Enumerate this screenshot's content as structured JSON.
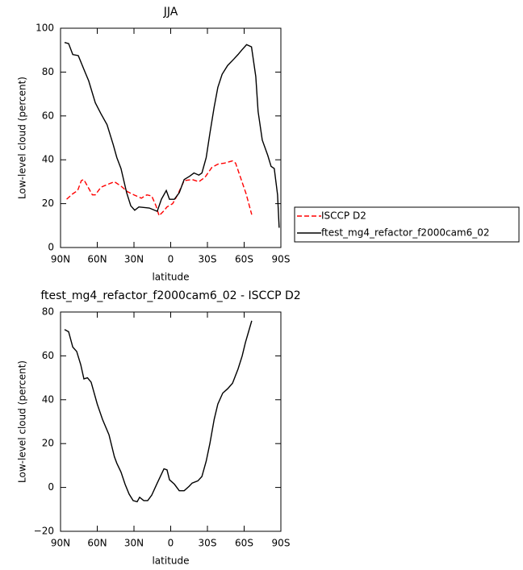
{
  "chart_data": [
    {
      "type": "line",
      "title": "JJA",
      "x_label": "latitude",
      "y_label": "Low-level cloud (percent)",
      "xlim": [
        90,
        -90
      ],
      "xticks": [
        {
          "value": 90,
          "label": "90N"
        },
        {
          "value": 60,
          "label": "60N"
        },
        {
          "value": 30,
          "label": "30N"
        },
        0,
        {
          "value": -30,
          "label": "30S"
        },
        {
          "value": -60,
          "label": "60S"
        },
        {
          "value": -90,
          "label": "90S"
        }
      ],
      "ylim": [
        0,
        100
      ],
      "yticks": [
        0,
        20,
        40,
        60,
        80,
        100
      ],
      "legend": "outside-right",
      "series": [
        {
          "name": "ISCCP D2",
          "color": "#ff0000",
          "dashed": true,
          "x": [
            85,
            80,
            76,
            73,
            71,
            68,
            64,
            61.6,
            57,
            50.5,
            46,
            40.6,
            35.4,
            30,
            24,
            19.5,
            15.5,
            12,
            9.5,
            6,
            3,
            -1.6,
            -5.6,
            -11,
            -17.5,
            -23,
            -28,
            -33.6,
            -38.5,
            -44,
            -50.5,
            -53,
            -57,
            -61.6,
            -66.2
          ],
          "values": [
            22,
            24.5,
            26,
            30.5,
            31,
            28,
            24,
            24,
            27.5,
            29,
            30,
            28,
            25.5,
            24,
            22.5,
            24,
            23.5,
            19,
            14.5,
            16.5,
            18.5,
            20,
            24,
            30.5,
            31,
            30,
            32,
            36.5,
            38,
            38.5,
            39.5,
            38.5,
            32,
            24.5,
            15
          ]
        },
        {
          "name": "ftest_mg4_refactor_f2000cam6_02",
          "color": "#000000",
          "dashed": false,
          "x": [
            86.7,
            83.4,
            80,
            75.5,
            70,
            67,
            61.6,
            57,
            52,
            47,
            44,
            40.6,
            36,
            32.6,
            29.4,
            26,
            17.5,
            11,
            7.6,
            3.6,
            1,
            -3,
            -7,
            -11,
            -15.5,
            -19,
            -23,
            -25.5,
            -29,
            -32,
            -35.5,
            -38.5,
            -42,
            -46.5,
            -51.7,
            -55,
            -58,
            -62,
            -66,
            -69.5,
            -71.4,
            -74.8,
            -79.3,
            -82,
            -84.6,
            -87.3,
            -88.6
          ],
          "values": [
            93.5,
            93,
            88,
            87.5,
            80,
            76,
            66,
            61,
            56,
            47,
            41,
            36,
            25,
            19,
            17,
            18.5,
            18,
            16.5,
            22,
            26,
            22,
            22,
            25,
            31,
            32.5,
            34,
            33,
            34,
            41,
            52,
            64,
            73,
            79,
            83,
            86,
            88,
            90,
            92.5,
            91.5,
            78,
            62,
            49,
            42,
            37,
            36,
            24,
            9
          ]
        }
      ]
    },
    {
      "type": "line",
      "title": "ftest_mg4_refactor_f2000cam6_02 - ISCCP D2",
      "x_label": "latitude",
      "y_label": "Low-level cloud (percent)",
      "xlim": [
        90,
        -90
      ],
      "xticks": [
        {
          "value": 90,
          "label": "90N"
        },
        {
          "value": 60,
          "label": "60N"
        },
        {
          "value": 30,
          "label": "30N"
        },
        0,
        {
          "value": -30,
          "label": "30S"
        },
        {
          "value": -60,
          "label": "60S"
        },
        {
          "value": -90,
          "label": "90S"
        }
      ],
      "ylim": [
        -20,
        80
      ],
      "yticks": [
        {
          "value": -20,
          "label": "−20"
        },
        0,
        20,
        40,
        60,
        80
      ],
      "series": [
        {
          "color": "#000000",
          "dashed": false,
          "x": [
            86.7,
            83.4,
            80,
            76.8,
            73.5,
            70.9,
            68,
            65,
            60,
            55.7,
            50.4,
            46,
            44,
            40.6,
            37.3,
            34,
            30.7,
            27.4,
            25.4,
            22,
            18.8,
            15.5,
            11,
            5.5,
            3,
            1,
            -3,
            -7,
            -11,
            -15,
            -17.5,
            -22.2,
            -25.5,
            -29,
            -32,
            -35.5,
            -38.5,
            -42.5,
            -46.5,
            -50.5,
            -55,
            -58.4,
            -61,
            -66.2
          ],
          "values": [
            72,
            71,
            64,
            62,
            56,
            49.5,
            50,
            48,
            38,
            31,
            24,
            14,
            11,
            7,
            1.5,
            -3,
            -6,
            -6.5,
            -4.5,
            -6,
            -6,
            -3.5,
            2,
            8.5,
            8,
            3.5,
            1.5,
            -1.5,
            -1.5,
            0.5,
            2,
            3,
            5,
            12,
            20,
            31,
            38,
            43,
            45,
            47.5,
            54,
            60,
            66,
            76
          ]
        }
      ]
    }
  ]
}
